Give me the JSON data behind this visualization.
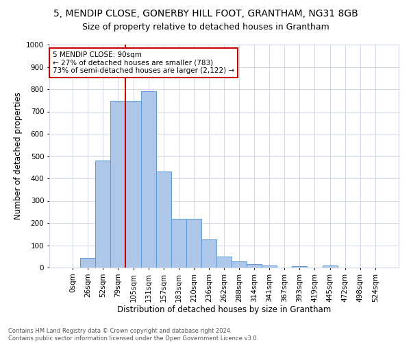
{
  "title1": "5, MENDIP CLOSE, GONERBY HILL FOOT, GRANTHAM, NG31 8GB",
  "title2": "Size of property relative to detached houses in Grantham",
  "xlabel": "Distribution of detached houses by size in Grantham",
  "ylabel": "Number of detached properties",
  "categories": [
    "0sqm",
    "26sqm",
    "52sqm",
    "79sqm",
    "105sqm",
    "131sqm",
    "157sqm",
    "183sqm",
    "210sqm",
    "236sqm",
    "262sqm",
    "288sqm",
    "314sqm",
    "341sqm",
    "367sqm",
    "393sqm",
    "419sqm",
    "445sqm",
    "472sqm",
    "498sqm",
    "524sqm"
  ],
  "values": [
    0,
    42,
    480,
    748,
    748,
    790,
    432,
    220,
    220,
    127,
    50,
    28,
    16,
    8,
    0,
    7,
    0,
    8,
    0,
    0,
    0
  ],
  "bar_color": "#aec6e8",
  "bar_edge_color": "#5b9bd5",
  "vline_color": "#cc0000",
  "vline_pos": 3.5,
  "annotation_text": "5 MENDIP CLOSE: 90sqm\n← 27% of detached houses are smaller (783)\n73% of semi-detached houses are larger (2,122) →",
  "annotation_box_color": "#ffffff",
  "annotation_box_edge": "#cc0000",
  "ylim": [
    0,
    1000
  ],
  "yticks": [
    0,
    100,
    200,
    300,
    400,
    500,
    600,
    700,
    800,
    900,
    1000
  ],
  "footer_text": "Contains HM Land Registry data © Crown copyright and database right 2024.\nContains public sector information licensed under the Open Government Licence v3.0.",
  "bg_color": "#ffffff",
  "grid_color": "#d0d8e8",
  "title1_fontsize": 10,
  "title2_fontsize": 9,
  "xlabel_fontsize": 8.5,
  "ylabel_fontsize": 8.5,
  "tick_fontsize": 7.5,
  "footer_fontsize": 6,
  "annot_fontsize": 7.5
}
